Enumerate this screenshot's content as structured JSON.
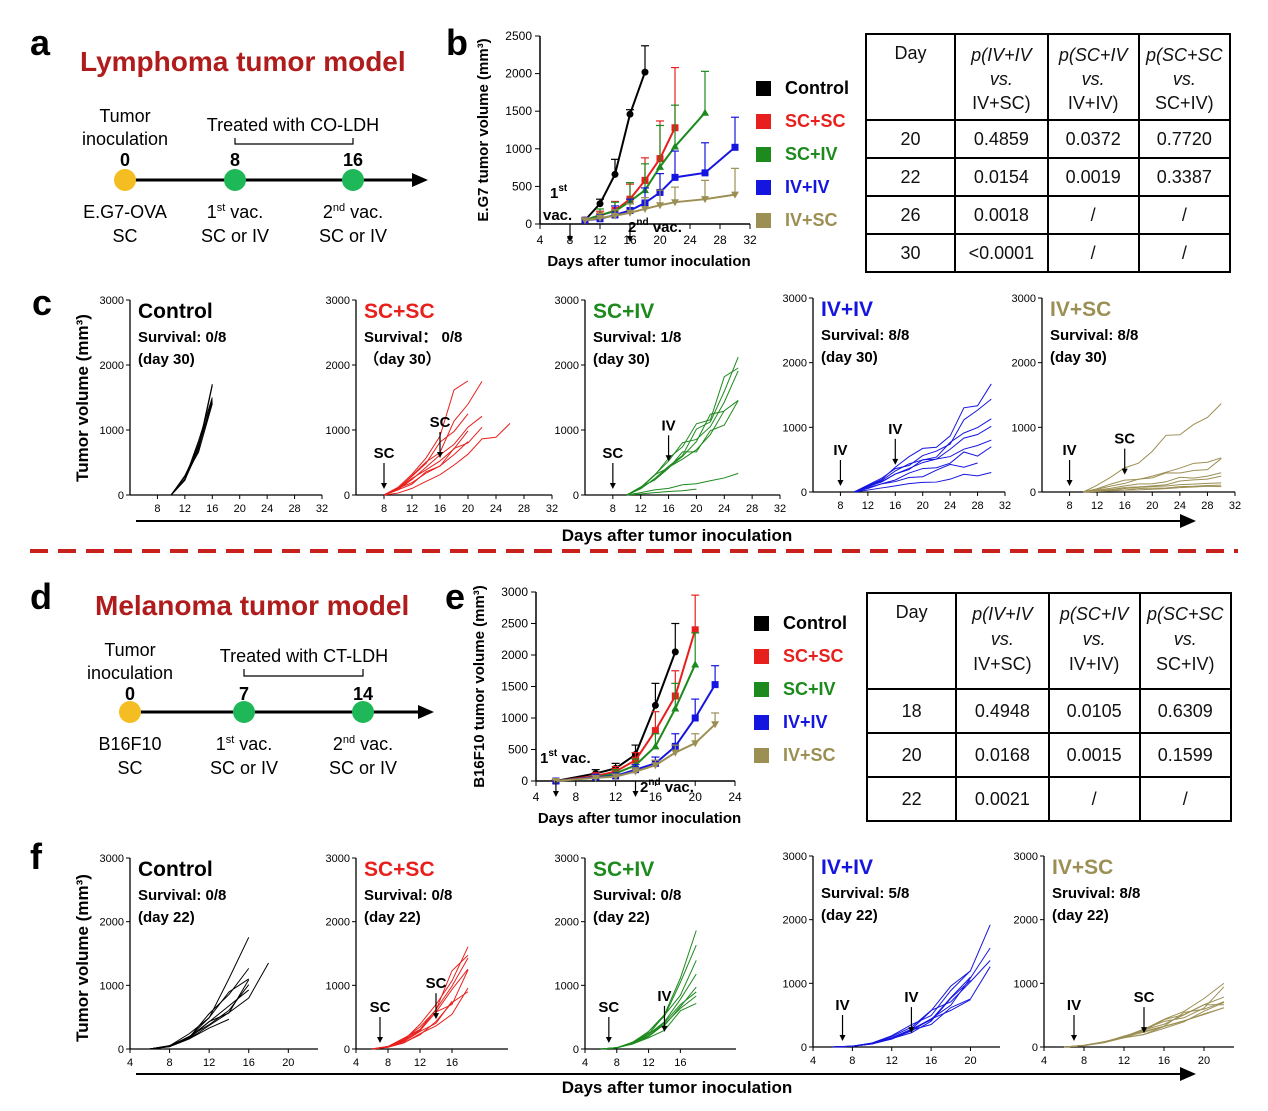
{
  "colors": {
    "control": "#000000",
    "scsc": "#e8201d",
    "sciv": "#1d8a1d",
    "iviv": "#1515e0",
    "ivsc": "#9c8f54",
    "title_red": "#b01c1c",
    "dashed": "#c8201d",
    "orange": "#f4be22",
    "green_dot": "#1fb858"
  },
  "panel_a": {
    "letter": "a",
    "title": "Lymphoma tumor model",
    "inoc_label_1": "Tumor",
    "inoc_label_2": "inoculation",
    "treated": "Treated with CO-LDH",
    "days": [
      "0",
      "8",
      "16"
    ],
    "cell": "E.G7-OVA",
    "route": "SC",
    "vac1": "1",
    "vac1_sup": "st",
    "vac1_rest": " vac.",
    "vac2": "2",
    "vac2_sup": "nd",
    "vac2_rest": " vac.",
    "vac_route": "SC or IV"
  },
  "panel_b": {
    "letter": "b"
  },
  "panel_c": {
    "letter": "c",
    "xlabel": "Days after tumor inoculation",
    "ylabel": "Tumor volume (mm³)"
  },
  "panel_d": {
    "letter": "d",
    "title": "Melanoma tumor model",
    "inoc_label_1": "Tumor",
    "inoc_label_2": "inoculation",
    "treated": "Treated with CT-LDH",
    "days": [
      "0",
      "7",
      "14"
    ],
    "cell": "B16F10",
    "route": "SC",
    "vac1": "1",
    "vac1_sup": "st",
    "vac1_rest": " vac.",
    "vac2": "2",
    "vac2_sup": "nd",
    "vac2_rest": " vac.",
    "vac_route": "SC or IV"
  },
  "panel_e": {
    "letter": "e"
  },
  "panel_f": {
    "letter": "f",
    "xlabel": "Days after tumor inoculation",
    "ylabel": "Tumor volume (mm³)"
  },
  "legend": [
    "Control",
    "SC+SC",
    "SC+IV",
    "IV+IV",
    "IV+SC"
  ],
  "table_b": {
    "headers": [
      {
        "l1": "Day",
        "l2": "",
        "l3": ""
      },
      {
        "l1": "p(IV+IV",
        "l2": "vs.",
        "l3": "IV+SC)"
      },
      {
        "l1": "p(SC+IV",
        "l2": "vs.",
        "l3": "IV+IV)"
      },
      {
        "l1": "p(SC+SC",
        "l2": "vs.",
        "l3": "SC+IV)"
      }
    ],
    "rows": [
      [
        "20",
        "0.4859",
        "0.0372",
        "0.7720"
      ],
      [
        "22",
        "0.0154",
        "0.0019",
        "0.3387"
      ],
      [
        "26",
        "0.0018",
        "/",
        "/"
      ],
      [
        "30",
        "<0.0001",
        "/",
        "/"
      ]
    ]
  },
  "table_e": {
    "headers": [
      {
        "l1": "Day",
        "l2": "",
        "l3": ""
      },
      {
        "l1": "p(IV+IV",
        "l2": "vs.",
        "l3": "IV+SC)"
      },
      {
        "l1": "p(SC+IV",
        "l2": "vs.",
        "l3": "IV+IV)"
      },
      {
        "l1": "p(SC+SC",
        "l2": "vs.",
        "l3": "SC+IV)"
      }
    ],
    "rows": [
      [
        "18",
        "0.4948",
        "0.0105",
        "0.6309"
      ],
      [
        "20",
        "0.0168",
        "0.0015",
        "0.1599"
      ],
      [
        "22",
        "0.0021",
        "/",
        "/"
      ]
    ]
  },
  "chart_data": [
    {
      "id": "b",
      "type": "line",
      "ylabel": "E.G7 tumor volume (mm³)",
      "xlabel": "Days after tumor inoculation",
      "xlim": [
        4,
        32
      ],
      "ylim": [
        0,
        2500
      ],
      "xticks": [
        "4",
        "8",
        "12",
        "16",
        "20",
        "24",
        "28",
        "32"
      ],
      "yticks": [
        "0",
        "500",
        "1000",
        "1500",
        "2000",
        "2500"
      ],
      "ann1": "1st vac.",
      "ann2": "2nd vac.",
      "series": [
        {
          "name": "Control",
          "x": [
            10,
            12,
            14,
            16,
            18
          ],
          "y": [
            50,
            270,
            660,
            1460,
            2020
          ],
          "err": [
            20,
            60,
            200,
            60,
            350
          ]
        },
        {
          "name": "SC+SC",
          "x": [
            10,
            12,
            14,
            16,
            18,
            20,
            22
          ],
          "y": [
            50,
            110,
            180,
            330,
            580,
            870,
            1280
          ],
          "err": [
            20,
            60,
            120,
            200,
            300,
            500,
            800
          ]
        },
        {
          "name": "SC+IV",
          "x": [
            10,
            12,
            14,
            16,
            18,
            20,
            22,
            26
          ],
          "y": [
            50,
            120,
            170,
            300,
            450,
            760,
            1030,
            1480
          ],
          "err": [
            20,
            80,
            120,
            250,
            350,
            550,
            550,
            550
          ]
        },
        {
          "name": "IV+IV",
          "x": [
            10,
            12,
            14,
            16,
            18,
            20,
            22,
            26,
            30
          ],
          "y": [
            50,
            70,
            120,
            180,
            280,
            420,
            620,
            680,
            1020
          ],
          "err": [
            20,
            50,
            120,
            150,
            200,
            250,
            350,
            400,
            400
          ]
        },
        {
          "name": "IV+SC",
          "x": [
            10,
            12,
            14,
            16,
            18,
            20,
            22,
            26,
            30
          ],
          "y": [
            50,
            80,
            110,
            150,
            200,
            250,
            290,
            330,
            390
          ],
          "err": [
            20,
            60,
            80,
            120,
            150,
            200,
            200,
            250,
            350
          ]
        }
      ]
    },
    {
      "id": "c",
      "type": "line",
      "xlim": [
        4,
        32
      ],
      "ylim": [
        0,
        3000
      ],
      "xticks": [
        "8",
        "12",
        "16",
        "20",
        "24",
        "28",
        "32"
      ],
      "yticks": [
        "0",
        "1000",
        "2000",
        "3000"
      ],
      "panels": [
        {
          "title": "Control",
          "survival": "Survival: 0/8",
          "day": "(day 30)",
          "arrows": []
        },
        {
          "title": "SC+SC",
          "survival": "Survival：  0/8",
          "day": "（day 30）",
          "arrows": [
            {
              "label": "SC",
              "day": 8
            },
            {
              "label": "SC",
              "day": 16
            }
          ]
        },
        {
          "title": "SC+IV",
          "survival": "Survival: 1/8",
          "day": "(day 30)",
          "arrows": [
            {
              "label": "SC",
              "day": 8
            },
            {
              "label": "IV",
              "day": 16
            }
          ]
        },
        {
          "title": "IV+IV",
          "survival": "Survival: 8/8",
          "day": "(day 30)",
          "arrows": [
            {
              "label": "IV",
              "day": 8
            },
            {
              "label": "IV",
              "day": 16
            }
          ]
        },
        {
          "title": "IV+SC",
          "survival": "Survival: 8/8",
          "day": "(day 30)",
          "arrows": [
            {
              "label": "IV",
              "day": 8
            },
            {
              "label": "SC",
              "day": 16
            }
          ]
        }
      ]
    },
    {
      "id": "e",
      "type": "line",
      "ylabel": "B16F10 tumor volume (mm³)",
      "xlabel": "Days after tumor inoculation",
      "xlim": [
        4,
        24
      ],
      "ylim": [
        0,
        3000
      ],
      "xticks": [
        "4",
        "8",
        "12",
        "16",
        "20",
        "24"
      ],
      "yticks": [
        "0",
        "500",
        "1000",
        "1500",
        "2000",
        "2500",
        "3000"
      ],
      "ann1": "1st vac.",
      "ann2": "2nd vac.",
      "series": [
        {
          "name": "Control",
          "x": [
            6,
            10,
            12,
            14,
            16,
            18
          ],
          "y": [
            0,
            120,
            200,
            420,
            1200,
            2050
          ],
          "err": [
            20,
            60,
            80,
            150,
            350,
            450
          ]
        },
        {
          "name": "SC+SC",
          "x": [
            6,
            10,
            12,
            14,
            16,
            18,
            20
          ],
          "y": [
            0,
            80,
            150,
            330,
            800,
            1350,
            2400
          ],
          "err": [
            20,
            50,
            80,
            120,
            300,
            400,
            550
          ]
        },
        {
          "name": "SC+IV",
          "x": [
            6,
            10,
            12,
            14,
            16,
            18,
            20
          ],
          "y": [
            0,
            60,
            120,
            250,
            550,
            1150,
            1850
          ],
          "err": [
            20,
            40,
            60,
            100,
            200,
            400,
            500
          ]
        },
        {
          "name": "IV+IV",
          "x": [
            6,
            10,
            12,
            14,
            16,
            18,
            20,
            22
          ],
          "y": [
            0,
            60,
            80,
            180,
            280,
            550,
            1000,
            1530
          ],
          "err": [
            20,
            30,
            40,
            80,
            100,
            200,
            300,
            300
          ]
        },
        {
          "name": "IV+SC",
          "x": [
            6,
            10,
            12,
            14,
            16,
            18,
            20,
            22
          ],
          "y": [
            0,
            50,
            70,
            150,
            250,
            450,
            600,
            900
          ],
          "err": [
            20,
            30,
            40,
            60,
            80,
            120,
            150,
            180
          ]
        }
      ]
    },
    {
      "id": "f",
      "type": "line",
      "xlim": [
        4,
        23
      ],
      "ylim": [
        0,
        3000
      ],
      "panels": [
        {
          "title": "Control",
          "survival": "Survival: 0/8",
          "day": "(day 22)",
          "xticks": [
            "4",
            "8",
            "12",
            "16",
            "20"
          ],
          "arrows": []
        },
        {
          "title": "SC+SC",
          "survival": "Survival:  0/8",
          "day": "(day 22)",
          "xticks": [
            "4",
            "8",
            "12",
            "16"
          ],
          "arrows": [
            {
              "label": "SC",
              "day": 7
            },
            {
              "label": "SC",
              "day": 14
            }
          ]
        },
        {
          "title": "SC+IV",
          "survival": "Survival: 0/8",
          "day": "(day 22)",
          "xticks": [
            "4",
            "8",
            "12",
            "16"
          ],
          "arrows": [
            {
              "label": "SC",
              "day": 7
            },
            {
              "label": "IV",
              "day": 14
            }
          ]
        },
        {
          "title": "IV+IV",
          "survival": "Survival: 5/8",
          "day": "(day 22)",
          "xticks": [
            "4",
            "8",
            "12",
            "16",
            "20"
          ],
          "arrows": [
            {
              "label": "IV",
              "day": 7
            },
            {
              "label": "IV",
              "day": 14
            }
          ]
        },
        {
          "title": "IV+SC",
          "survival": "Sruvival: 8/8",
          "day": "(day 22)",
          "xticks": [
            "4",
            "8",
            "12",
            "16",
            "20"
          ],
          "arrows": [
            {
              "label": "IV",
              "day": 7
            },
            {
              "label": "SC",
              "day": 14
            }
          ]
        }
      ]
    }
  ]
}
